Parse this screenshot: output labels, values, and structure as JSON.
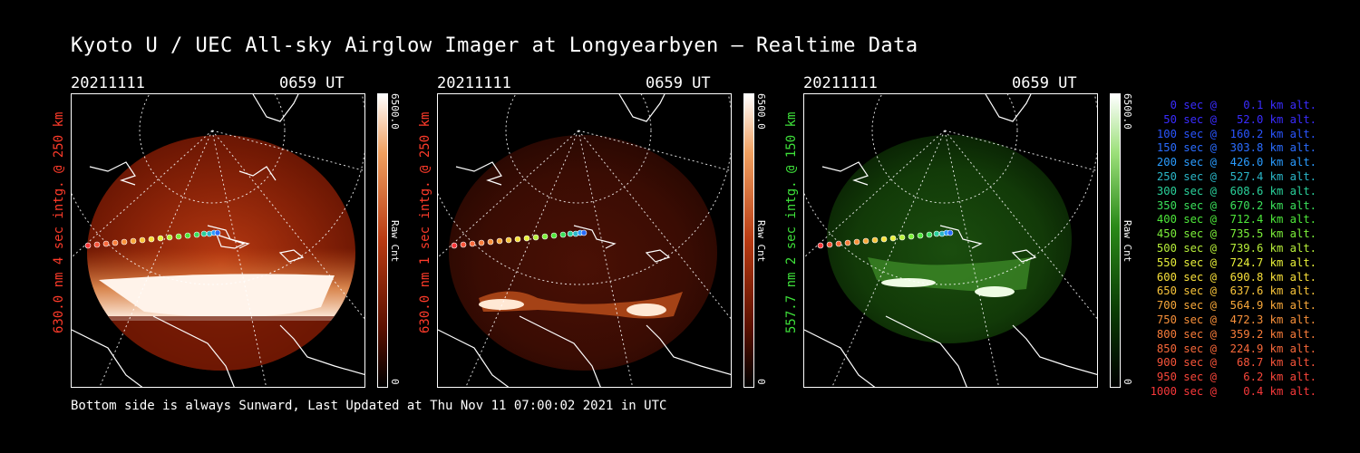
{
  "title": "Kyoto U / UEC All-sky Airglow Imager at Longyearbyen — Realtime Data",
  "footer": "Bottom side is always Sunward, Last Updated at Thu Nov 11 07:00:02 2021 in UTC",
  "panels": [
    {
      "date": "20211111",
      "time": "0659 UT",
      "ylabel": "630.0 nm 4 sec intg. @ 250 km",
      "label_color": "#ff3b2a",
      "colorbar_max": "6500.0",
      "colorbar_min": "0",
      "colorbar_unit": "Raw Cnt",
      "colormap": "red"
    },
    {
      "date": "20211111",
      "time": "0659 UT",
      "ylabel": "630.0 nm 1 sec intg. @ 250 km",
      "label_color": "#ff3b2a",
      "colorbar_max": "6500.0",
      "colorbar_min": "0",
      "colorbar_unit": "Raw Cnt",
      "colormap": "red"
    },
    {
      "date": "20211111",
      "time": "0659 UT",
      "ylabel": "557.7 nm 2 sec intg. @ 150 km",
      "label_color": "#3ee03a",
      "colorbar_max": "6500.0",
      "colorbar_min": "0",
      "colorbar_unit": "Raw Cnt",
      "colormap": "green"
    }
  ],
  "altitude_legend": [
    {
      "text": "   0 sec @    0.1 km alt.",
      "color": "#3a2cff"
    },
    {
      "text": "  50 sec @   52.0 km alt.",
      "color": "#3a2cff"
    },
    {
      "text": " 100 sec @  160.2 km alt.",
      "color": "#2a55ff"
    },
    {
      "text": " 150 sec @  303.8 km alt.",
      "color": "#2a6cff"
    },
    {
      "text": " 200 sec @  426.0 km alt.",
      "color": "#2a9cff"
    },
    {
      "text": " 250 sec @  527.4 km alt.",
      "color": "#2ab6c8"
    },
    {
      "text": " 300 sec @  608.6 km alt.",
      "color": "#2ad09a"
    },
    {
      "text": " 350 sec @  670.2 km alt.",
      "color": "#3ae05a"
    },
    {
      "text": " 400 sec @  712.4 km alt.",
      "color": "#4ee83a"
    },
    {
      "text": " 450 sec @  735.5 km alt.",
      "color": "#7cf03a"
    },
    {
      "text": " 500 sec @  739.6 km alt.",
      "color": "#b8f03a"
    },
    {
      "text": " 550 sec @  724.7 km alt.",
      "color": "#e8f03a"
    },
    {
      "text": " 600 sec @  690.8 km alt.",
      "color": "#f8e03a"
    },
    {
      "text": " 650 sec @  637.6 km alt.",
      "color": "#f8c43a"
    },
    {
      "text": " 700 sec @  564.9 km alt.",
      "color": "#f8a83a"
    },
    {
      "text": " 750 sec @  472.3 km alt.",
      "color": "#f8903a"
    },
    {
      "text": " 800 sec @  359.2 km alt.",
      "color": "#f87c3a"
    },
    {
      "text": " 850 sec @  224.9 km alt.",
      "color": "#f8683a"
    },
    {
      "text": " 900 sec @   68.7 km alt.",
      "color": "#f8543a"
    },
    {
      "text": " 950 sec @    6.2 km alt.",
      "color": "#f8463a"
    },
    {
      "text": "1000 sec @    0.4 km alt.",
      "color": "#f8383a"
    }
  ]
}
